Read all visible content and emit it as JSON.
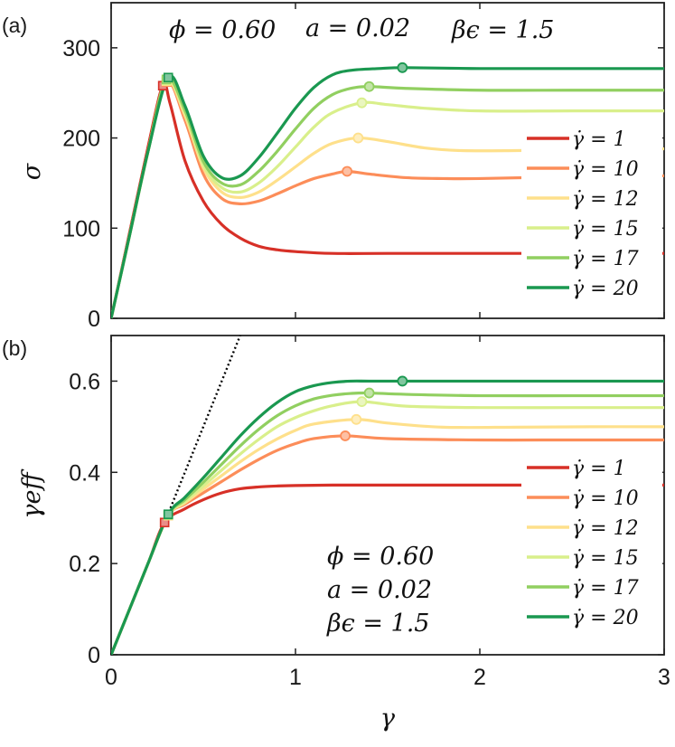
{
  "chart_data": [
    {
      "panel_label": "(a)",
      "type": "line",
      "xlabel": "",
      "ylabel": "σ",
      "xlim": [
        0,
        3
      ],
      "ylim": [
        0,
        350
      ],
      "xticks": [
        0,
        1,
        2,
        3
      ],
      "yticks": [
        0,
        100,
        200,
        300
      ],
      "x_tick_labels_shown": false,
      "grid": false,
      "legend_position": "right",
      "annotations": [
        "ϕ = 0.60",
        "a = 0.02",
        "βϵ = 1.5"
      ],
      "series": [
        {
          "name": "γ̇ = 1",
          "color": "#d73027",
          "x": [
            0,
            0.1,
            0.2,
            0.28,
            0.32,
            0.4,
            0.5,
            0.6,
            0.7,
            0.8,
            0.9,
            1.0,
            1.2,
            1.5,
            2.0,
            2.5,
            3.0
          ],
          "y": [
            0,
            95,
            190,
            258,
            238,
            175,
            130,
            104,
            89,
            80,
            76,
            74,
            72,
            72,
            72,
            72,
            72
          ],
          "peak": [
            0.29,
            263
          ]
        },
        {
          "name": "γ̇ = 10",
          "color": "#fc8d59",
          "x": [
            0,
            0.1,
            0.2,
            0.3,
            0.4,
            0.5,
            0.6,
            0.7,
            0.8,
            0.9,
            1.0,
            1.1,
            1.2,
            1.28,
            1.4,
            1.6,
            1.8,
            2.0,
            2.5,
            3.0
          ],
          "y": [
            0,
            92,
            185,
            262,
            220,
            160,
            133,
            127,
            130,
            138,
            147,
            155,
            160,
            163,
            160,
            156,
            155,
            155,
            157,
            158
          ],
          "peak": [
            1.28,
            163
          ]
        },
        {
          "name": "γ̇ = 12",
          "color": "#fee08b",
          "x": [
            0,
            0.1,
            0.2,
            0.3,
            0.4,
            0.5,
            0.6,
            0.7,
            0.8,
            0.9,
            1.0,
            1.1,
            1.2,
            1.34,
            1.5,
            1.7,
            1.9,
            2.2,
            2.6,
            3.0
          ],
          "y": [
            0,
            92,
            185,
            263,
            225,
            167,
            140,
            134,
            140,
            153,
            168,
            183,
            194,
            200,
            196,
            189,
            186,
            186,
            187,
            188
          ],
          "peak": [
            1.34,
            200
          ]
        },
        {
          "name": "γ̇ = 15",
          "color": "#d9ef8b",
          "x": [
            0,
            0.1,
            0.2,
            0.3,
            0.4,
            0.5,
            0.6,
            0.7,
            0.8,
            0.9,
            1.0,
            1.1,
            1.2,
            1.36,
            1.5,
            1.7,
            2.0,
            2.5,
            3.0
          ],
          "y": [
            0,
            92,
            185,
            264,
            228,
            170,
            145,
            140,
            150,
            168,
            190,
            212,
            228,
            239,
            237,
            233,
            230,
            230,
            230
          ],
          "peak": [
            1.36,
            239
          ]
        },
        {
          "name": "γ̇ = 17",
          "color": "#91cf60",
          "x": [
            0,
            0.1,
            0.2,
            0.3,
            0.4,
            0.5,
            0.6,
            0.7,
            0.8,
            0.9,
            1.0,
            1.1,
            1.2,
            1.3,
            1.4,
            1.6,
            2.0,
            2.5,
            3.0
          ],
          "y": [
            0,
            92,
            185,
            265,
            231,
            174,
            150,
            148,
            163,
            185,
            210,
            233,
            248,
            255,
            257,
            255,
            253,
            253,
            253
          ],
          "peak": [
            1.4,
            257
          ]
        },
        {
          "name": "γ̇ = 20",
          "color": "#1a9850",
          "x": [
            0,
            0.1,
            0.2,
            0.31,
            0.4,
            0.5,
            0.6,
            0.7,
            0.8,
            0.9,
            1.0,
            1.1,
            1.2,
            1.3,
            1.45,
            1.6,
            2.0,
            2.5,
            3.0
          ],
          "y": [
            0,
            92,
            185,
            267,
            236,
            180,
            156,
            158,
            178,
            205,
            233,
            256,
            270,
            275,
            277,
            278,
            277,
            277,
            277
          ],
          "peak": [
            1.58,
            278
          ]
        }
      ]
    },
    {
      "panel_label": "(b)",
      "type": "line",
      "xlabel": "γ",
      "ylabel": "γeff",
      "xlim": [
        0,
        3
      ],
      "ylim": [
        0,
        0.7
      ],
      "xticks": [
        0,
        1,
        2,
        3
      ],
      "yticks": [
        0,
        0.2,
        0.4,
        0.6
      ],
      "grid": false,
      "legend_position": "right",
      "annotations": [
        "ϕ = 0.60",
        "a = 0.02",
        "βϵ = 1.5"
      ],
      "reference_line": {
        "style": "dotted",
        "color": "#000000",
        "x": [
          0,
          0.7
        ],
        "y": [
          0,
          0.7
        ]
      },
      "series": [
        {
          "name": "γ̇ = 1",
          "color": "#d73027",
          "x": [
            0,
            0.1,
            0.2,
            0.29,
            0.4,
            0.5,
            0.6,
            0.7,
            0.8,
            0.9,
            1.0,
            1.2,
            1.5,
            2.0,
            3.0
          ],
          "y": [
            0,
            0.1,
            0.2,
            0.29,
            0.32,
            0.34,
            0.355,
            0.364,
            0.368,
            0.37,
            0.371,
            0.372,
            0.372,
            0.372,
            0.372
          ],
          "peak": [
            0.29,
            0.29
          ]
        },
        {
          "name": "γ̇ = 10",
          "color": "#fc8d59",
          "x": [
            0,
            0.1,
            0.2,
            0.31,
            0.4,
            0.5,
            0.6,
            0.7,
            0.8,
            0.9,
            1.0,
            1.1,
            1.27,
            1.5,
            2.0,
            2.5,
            3.0
          ],
          "y": [
            0,
            0.1,
            0.2,
            0.305,
            0.33,
            0.355,
            0.38,
            0.405,
            0.428,
            0.448,
            0.463,
            0.474,
            0.48,
            0.474,
            0.471,
            0.471,
            0.471
          ],
          "peak": [
            1.27,
            0.48
          ]
        },
        {
          "name": "γ̇ = 12",
          "color": "#fee08b",
          "x": [
            0,
            0.1,
            0.2,
            0.31,
            0.4,
            0.5,
            0.6,
            0.7,
            0.8,
            0.9,
            1.0,
            1.1,
            1.33,
            1.5,
            1.8,
            2.2,
            2.6,
            3.0
          ],
          "y": [
            0,
            0.1,
            0.2,
            0.305,
            0.333,
            0.363,
            0.393,
            0.423,
            0.45,
            0.473,
            0.492,
            0.506,
            0.516,
            0.508,
            0.499,
            0.499,
            0.5,
            0.5
          ],
          "peak": [
            1.33,
            0.516
          ]
        },
        {
          "name": "γ̇ = 15",
          "color": "#d9ef8b",
          "x": [
            0,
            0.1,
            0.2,
            0.31,
            0.4,
            0.5,
            0.6,
            0.7,
            0.8,
            0.9,
            1.0,
            1.1,
            1.2,
            1.36,
            1.6,
            2.0,
            2.5,
            3.0
          ],
          "y": [
            0,
            0.1,
            0.2,
            0.306,
            0.336,
            0.37,
            0.405,
            0.44,
            0.472,
            0.5,
            0.52,
            0.535,
            0.546,
            0.555,
            0.545,
            0.542,
            0.542,
            0.542
          ],
          "peak": [
            1.36,
            0.555
          ]
        },
        {
          "name": "γ̇ = 17",
          "color": "#91cf60",
          "x": [
            0,
            0.1,
            0.2,
            0.31,
            0.4,
            0.5,
            0.6,
            0.7,
            0.8,
            0.9,
            1.0,
            1.1,
            1.2,
            1.3,
            1.4,
            1.6,
            2.0,
            2.5,
            3.0
          ],
          "y": [
            0,
            0.1,
            0.2,
            0.307,
            0.34,
            0.378,
            0.418,
            0.458,
            0.494,
            0.524,
            0.546,
            0.561,
            0.569,
            0.573,
            0.574,
            0.571,
            0.568,
            0.568,
            0.568
          ],
          "peak": [
            1.4,
            0.574
          ]
        },
        {
          "name": "γ̇ = 20",
          "color": "#1a9850",
          "x": [
            0,
            0.1,
            0.2,
            0.31,
            0.4,
            0.5,
            0.6,
            0.7,
            0.8,
            0.9,
            1.0,
            1.1,
            1.2,
            1.3,
            1.4,
            1.58,
            2.0,
            2.5,
            3.0
          ],
          "y": [
            0,
            0.1,
            0.2,
            0.308,
            0.345,
            0.388,
            0.434,
            0.48,
            0.52,
            0.553,
            0.577,
            0.59,
            0.597,
            0.6,
            0.6,
            0.6,
            0.6,
            0.6,
            0.6
          ],
          "peak": [
            1.58,
            0.6
          ]
        }
      ]
    }
  ]
}
